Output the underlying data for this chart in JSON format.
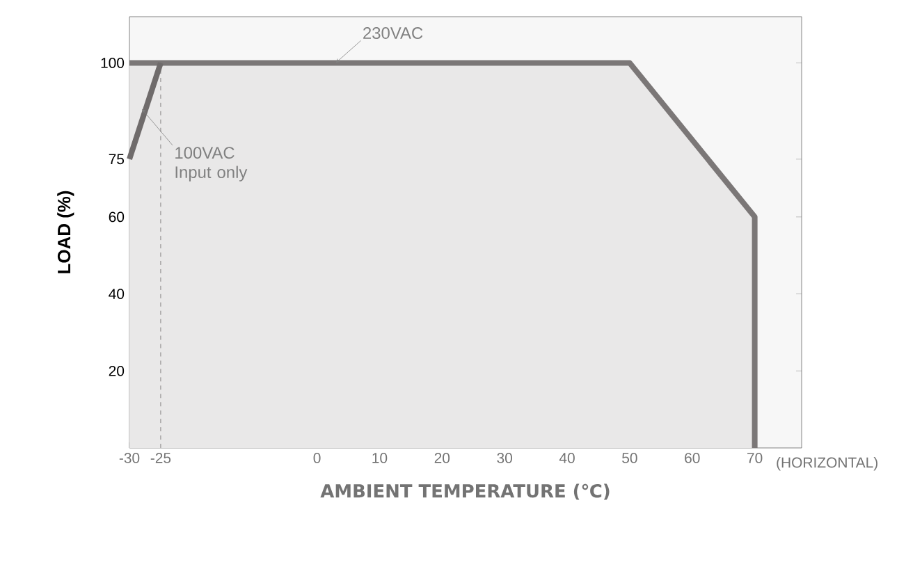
{
  "chart_data": {
    "type": "area",
    "xlabel": "AMBIENT TEMPERATURE (℃)",
    "ylabel": "LOAD (%)",
    "series": [
      {
        "color": "#7b7777",
        "x": [
          -30,
          50,
          70,
          70
        ],
        "values": [
          100,
          100,
          60,
          0
        ]
      },
      {
        "type": "line",
        "color": "#6f6b6b",
        "x": [
          -30,
          -25
        ],
        "values": [
          75,
          100
        ]
      }
    ],
    "xlim": [
      -30,
      77.5
    ],
    "xticks": [
      -30,
      -25,
      0,
      10,
      20,
      30,
      40,
      50,
      60,
      70
    ],
    "ylim": [
      0,
      112
    ],
    "yticks": [
      20,
      40,
      60,
      75,
      100
    ],
    "ref_lines": [
      {
        "axis": "x",
        "value": -25,
        "color": "#6f6b6b",
        "line_style": "dashed"
      }
    ],
    "annotations": [
      {
        "text": "230VAC",
        "x": 3,
        "y": 100
      },
      {
        "text": "100VAC\nInput only",
        "x": -28,
        "y": 88
      },
      "(HORIZONTAL)"
    ]
  }
}
